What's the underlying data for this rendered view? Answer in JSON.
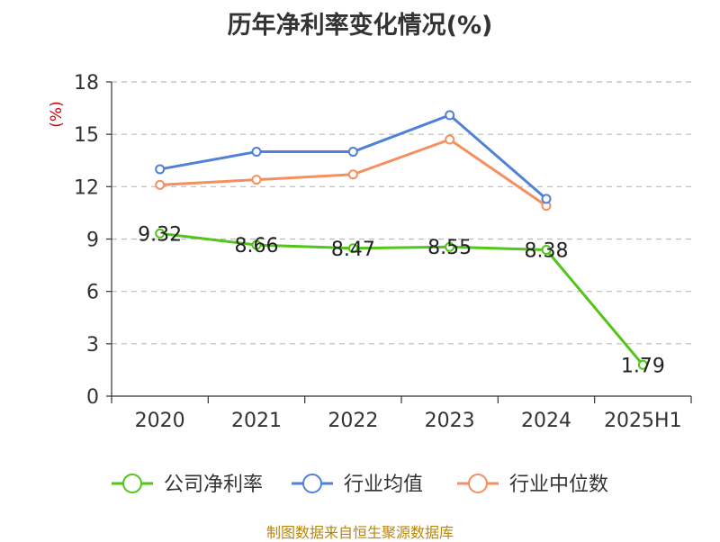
{
  "chart_data": {
    "type": "line",
    "title": "历年净利率变化情况(%)",
    "ylabel": "(%)",
    "xlabel": "",
    "categories": [
      "2020",
      "2021",
      "2022",
      "2023",
      "2024",
      "2025H1"
    ],
    "ylim": [
      0,
      18
    ],
    "yticks": [
      0,
      3,
      6,
      9,
      12,
      15,
      18
    ],
    "grid": true,
    "legend_position": "bottom",
    "series": [
      {
        "name": "公司净利率",
        "color": "#52c41a",
        "values": [
          9.32,
          8.66,
          8.47,
          8.55,
          8.38,
          1.79
        ],
        "labels": [
          "9.32",
          "8.66",
          "8.47",
          "8.55",
          "8.38",
          "1.79"
        ]
      },
      {
        "name": "行业均值",
        "color": "#4f81d9",
        "values": [
          13.0,
          14.0,
          14.0,
          16.1,
          11.3,
          null
        ]
      },
      {
        "name": "行业中位数",
        "color": "#f58f5f",
        "values": [
          12.1,
          12.4,
          12.7,
          14.7,
          10.9,
          null
        ]
      }
    ]
  },
  "source_note": "制图数据来自恒生聚源数据库",
  "colors": {
    "ylabel": "#cc0000",
    "grid": "#bbbbbb",
    "axis": "#333333"
  }
}
